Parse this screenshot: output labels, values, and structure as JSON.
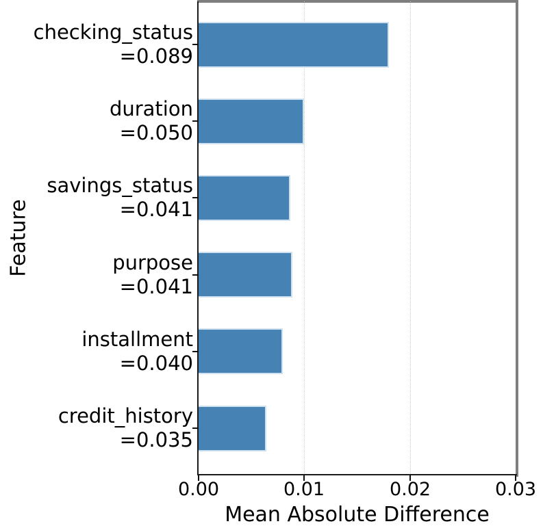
{
  "chart_data": {
    "type": "bar",
    "orientation": "horizontal",
    "title": "",
    "xlabel": "Mean Absolute Difference",
    "ylabel": "Feature",
    "xlim": [
      0,
      0.03
    ],
    "xtick_labels": [
      "0.00",
      "0.01",
      "0.02",
      "0.03"
    ],
    "xtick_values": [
      0,
      0.01,
      0.02,
      0.03
    ],
    "grid": {
      "show": true,
      "axis": "x",
      "style": "dotted"
    },
    "legend": false,
    "bar_color": "#4682b4",
    "categories": [
      "checking_status",
      "duration",
      "savings_status",
      "purpose",
      "installment",
      "credit_history"
    ],
    "category_annotations": [
      "=0.089",
      "=0.050",
      "=0.041",
      "=0.041",
      "=0.040",
      "=0.035"
    ],
    "values": [
      0.018,
      0.01,
      0.0087,
      0.0089,
      0.008,
      0.0064
    ]
  }
}
